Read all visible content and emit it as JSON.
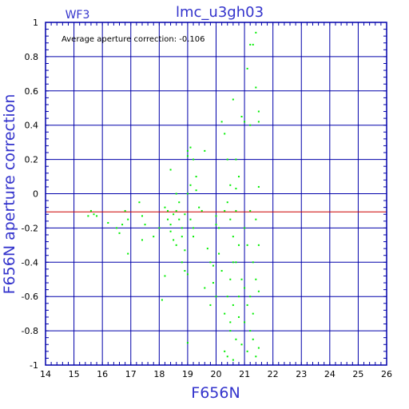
{
  "chart_data": {
    "type": "scatter",
    "title": "lmc_u3gh03",
    "subtitle": "WF3",
    "annotation": "Average aperture correction: -0.106",
    "xlabel": "F656N",
    "ylabel": "F656N aperture correction",
    "xlim": [
      14,
      26
    ],
    "ylim": [
      -1,
      1
    ],
    "x_ticks": [
      "14",
      "15",
      "16",
      "17",
      "18",
      "19",
      "20",
      "21",
      "22",
      "23",
      "24",
      "25",
      "26"
    ],
    "y_ticks": [
      "-1",
      "-0.8",
      "-0.6",
      "-0.4",
      "-0.2",
      "0",
      "0.2",
      "0.4",
      "0.6",
      "0.8",
      "1"
    ],
    "reference_line": -0.106,
    "grid": true,
    "colors": {
      "frame": "#0000aa",
      "grid": "#0000aa",
      "points": "#00ee00",
      "reference_line": "#cc0000",
      "title": "#3333cc"
    },
    "points": [
      [
        15.6,
        -0.1
      ],
      [
        15.7,
        -0.12
      ],
      [
        15.5,
        -0.13
      ],
      [
        15.8,
        -0.13
      ],
      [
        16.2,
        -0.17
      ],
      [
        16.5,
        -0.2
      ],
      [
        16.6,
        -0.23
      ],
      [
        16.7,
        -0.18
      ],
      [
        16.8,
        -0.1
      ],
      [
        16.9,
        -0.15
      ],
      [
        16.9,
        -0.35
      ],
      [
        17.3,
        -0.05
      ],
      [
        17.4,
        -0.13
      ],
      [
        17.5,
        -0.18
      ],
      [
        17.4,
        -0.27
      ],
      [
        17.8,
        -0.25
      ],
      [
        18.0,
        -0.2
      ],
      [
        18.1,
        -0.62
      ],
      [
        18.2,
        -0.08
      ],
      [
        18.3,
        -0.1
      ],
      [
        18.3,
        -0.15
      ],
      [
        18.4,
        -0.18
      ],
      [
        18.4,
        -0.22
      ],
      [
        18.5,
        -0.12
      ],
      [
        18.5,
        -0.27
      ],
      [
        18.6,
        -0.1
      ],
      [
        18.6,
        -0.3
      ],
      [
        18.7,
        -0.05
      ],
      [
        18.7,
        -0.15
      ],
      [
        18.8,
        -0.2
      ],
      [
        18.8,
        -0.25
      ],
      [
        18.9,
        -0.12
      ],
      [
        18.9,
        -0.33
      ],
      [
        18.2,
        -0.48
      ],
      [
        18.4,
        0.14
      ],
      [
        18.6,
        0.0
      ],
      [
        18.8,
        -0.4
      ],
      [
        18.9,
        -0.45
      ],
      [
        19.0,
        -0.47
      ],
      [
        19.0,
        0.0
      ],
      [
        19.1,
        -0.15
      ],
      [
        19.1,
        0.05
      ],
      [
        19.2,
        -0.2
      ],
      [
        19.2,
        -0.25
      ],
      [
        19.3,
        0.02
      ],
      [
        19.3,
        0.1
      ],
      [
        19.4,
        -0.08
      ],
      [
        19.5,
        -0.1
      ],
      [
        19.6,
        0.25
      ],
      [
        19.7,
        -0.32
      ],
      [
        19.8,
        -0.4
      ],
      [
        19.9,
        -0.52
      ],
      [
        20.0,
        -0.6
      ],
      [
        20.0,
        -0.13
      ],
      [
        20.0,
        -0.18
      ],
      [
        19.1,
        0.27
      ],
      [
        19.0,
        0.25
      ],
      [
        19.2,
        0.2
      ],
      [
        19.0,
        0.22
      ],
      [
        19.0,
        -0.87
      ],
      [
        19.6,
        -0.55
      ],
      [
        19.8,
        -0.65
      ],
      [
        19.9,
        -0.42
      ],
      [
        20.1,
        -0.2
      ],
      [
        20.1,
        -0.35
      ],
      [
        20.2,
        0.42
      ],
      [
        20.2,
        -0.45
      ],
      [
        20.3,
        -0.7
      ],
      [
        20.3,
        -0.92
      ],
      [
        20.3,
        0.35
      ],
      [
        20.4,
        -0.05
      ],
      [
        20.4,
        -0.6
      ],
      [
        20.4,
        -0.95
      ],
      [
        20.5,
        0.05
      ],
      [
        20.5,
        -0.15
      ],
      [
        20.5,
        -0.75
      ],
      [
        20.5,
        -0.8
      ],
      [
        20.6,
        0.55
      ],
      [
        20.6,
        -0.25
      ],
      [
        20.6,
        -0.65
      ],
      [
        20.6,
        -0.97
      ],
      [
        20.7,
        0.2
      ],
      [
        20.7,
        -0.1
      ],
      [
        20.7,
        -0.4
      ],
      [
        20.7,
        -0.85
      ],
      [
        20.8,
        0.1
      ],
      [
        20.8,
        -0.3
      ],
      [
        20.8,
        -0.72
      ],
      [
        20.9,
        0.45
      ],
      [
        20.9,
        -0.5
      ],
      [
        20.9,
        -0.88
      ],
      [
        21.0,
        0.42
      ],
      [
        21.0,
        -0.2
      ],
      [
        21.0,
        -0.55
      ],
      [
        21.0,
        -0.75
      ],
      [
        21.1,
        0.73
      ],
      [
        21.1,
        -0.3
      ],
      [
        21.1,
        -0.65
      ],
      [
        21.1,
        -0.92
      ],
      [
        21.2,
        0.87
      ],
      [
        21.2,
        0.4
      ],
      [
        21.2,
        -0.1
      ],
      [
        21.2,
        -0.6
      ],
      [
        21.2,
        -0.8
      ],
      [
        21.3,
        0.87
      ],
      [
        21.3,
        -0.4
      ],
      [
        21.3,
        -0.7
      ],
      [
        21.3,
        -0.85
      ],
      [
        21.4,
        0.94
      ],
      [
        21.4,
        0.62
      ],
      [
        21.4,
        -0.15
      ],
      [
        21.4,
        -0.5
      ],
      [
        21.4,
        -0.95
      ],
      [
        21.5,
        0.48
      ],
      [
        21.5,
        0.42
      ],
      [
        21.5,
        0.04
      ],
      [
        21.5,
        -0.3
      ],
      [
        21.5,
        -0.57
      ],
      [
        21.5,
        -0.9
      ],
      [
        20.3,
        -0.1
      ],
      [
        20.4,
        0.2
      ],
      [
        20.5,
        -0.5
      ],
      [
        20.6,
        -0.4
      ],
      [
        20.7,
        0.03
      ],
      [
        20.8,
        -0.6
      ]
    ]
  }
}
